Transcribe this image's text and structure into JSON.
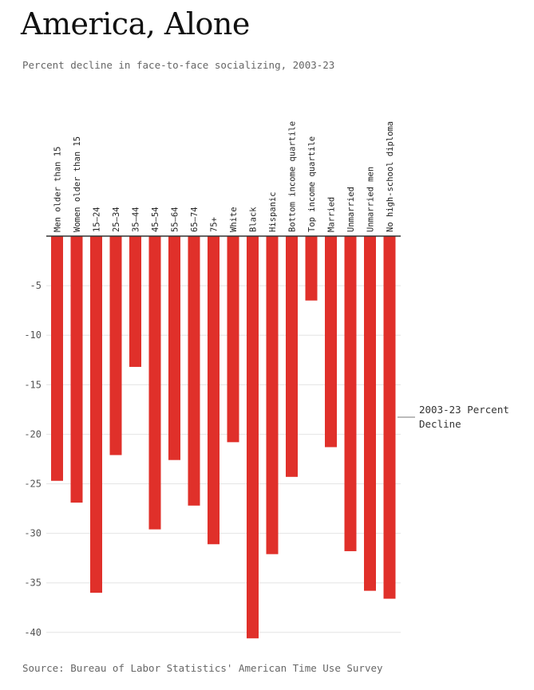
{
  "title": "America, Alone",
  "subtitle": "Percent decline in face-to-face socializing, 2003-23",
  "source": "Source: Bureau of Labor Statistics' American Time Use Survey",
  "colors": {
    "bar": "#e0302a",
    "grid": "#e4e4e4",
    "baseline": "#333333"
  },
  "chart_data": {
    "type": "bar",
    "categories": [
      "Men older than 15",
      "Women older than 15",
      "15–24",
      "25–34",
      "35–44",
      "45–54",
      "55–64",
      "65–74",
      "75+",
      "White",
      "Black",
      "Hispanic",
      "Bottom income quartile",
      "Top income quartile",
      "Married",
      "Unmarried",
      "Unmarried men",
      "No high-school diploma"
    ],
    "series": [
      {
        "name": "2003-23 Percent Decline",
        "values": [
          -24.7,
          -26.9,
          -36.0,
          -22.1,
          -13.2,
          -29.6,
          -22.6,
          -27.2,
          -31.1,
          -20.8,
          -40.6,
          -32.1,
          -24.3,
          -6.5,
          -21.3,
          -31.8,
          -35.8,
          -36.6
        ]
      }
    ],
    "yticks": [
      -5,
      -10,
      -15,
      -20,
      -25,
      -30,
      -35,
      -40
    ],
    "ylim": [
      -41,
      0
    ],
    "grid": true,
    "legend": "right",
    "legend_lines": [
      "2003-23 Percent",
      "Decline"
    ]
  }
}
